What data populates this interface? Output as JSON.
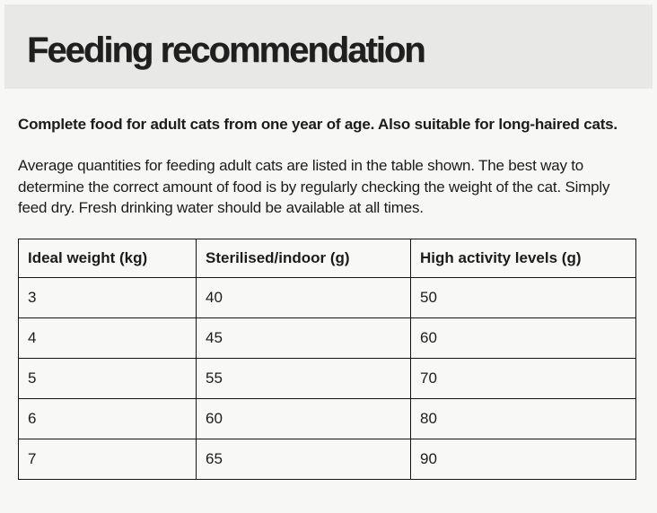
{
  "page": {
    "title": "Feeding recommendation",
    "intro_bold": "Complete food for adult cats from one year of age. Also suitable for long-haired cats.",
    "intro_text": "Average quantities for feeding adult cats are listed in the table shown. The best way to determine the correct amount of food is by regularly checking the weight of the cat. Simply feed dry. Fresh drinking water should be available at all times."
  },
  "table": {
    "headers": [
      "Ideal weight (kg)",
      "Sterilised/indoor (g)",
      "High activity levels (g)"
    ],
    "rows": [
      [
        "3",
        "40",
        "50"
      ],
      [
        "4",
        "45",
        "60"
      ],
      [
        "5",
        "55",
        "70"
      ],
      [
        "6",
        "60",
        "80"
      ],
      [
        "7",
        "65",
        "90"
      ]
    ]
  },
  "colors": {
    "page_bg": "#f7f7f6",
    "band_bg": "#e8e8e7",
    "text": "#1c1c1c",
    "table_border": "#141414",
    "cell_bg": "#f8f8f7"
  }
}
